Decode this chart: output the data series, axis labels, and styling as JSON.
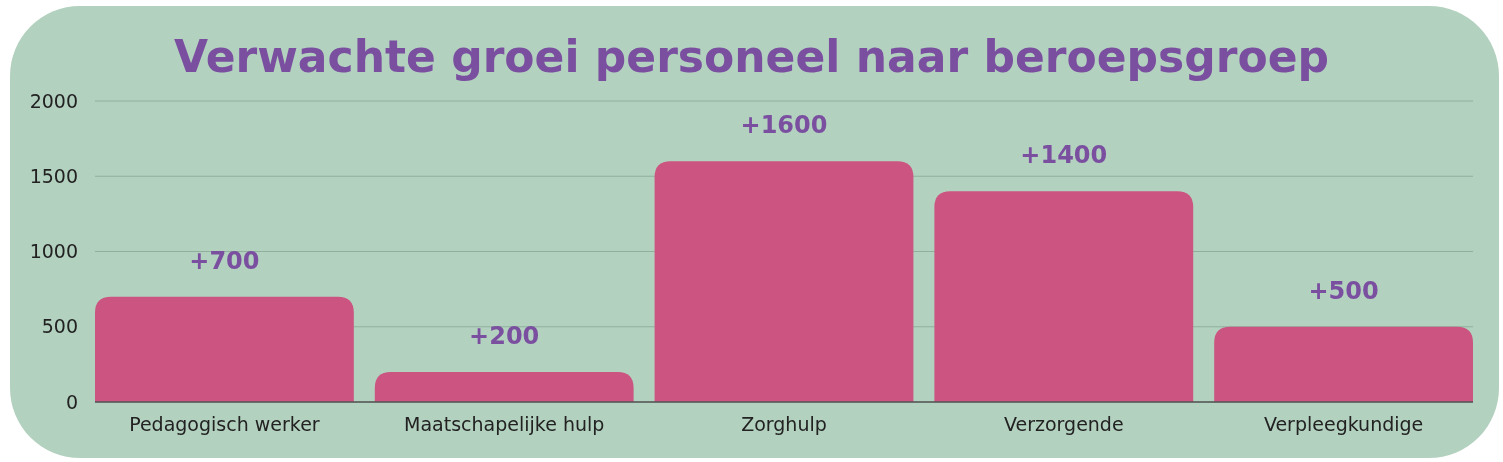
{
  "chart_data": {
    "type": "bar",
    "title": "Verwachte groei personeel naar beroepsgroep",
    "categories": [
      "Pedagogisch werker",
      "Maatschapelijke hulp",
      "Zorghulp",
      "Verzorgende",
      "Verpleegkundige"
    ],
    "values": [
      700,
      200,
      1600,
      1400,
      500
    ],
    "value_labels": [
      "+700",
      "+200",
      "+1600",
      "+1400",
      "+500"
    ],
    "color": "#cb5480",
    "ylim": [
      0,
      2000
    ],
    "yticks": [
      0,
      500,
      1000,
      1500,
      2000
    ],
    "grid": "y"
  }
}
